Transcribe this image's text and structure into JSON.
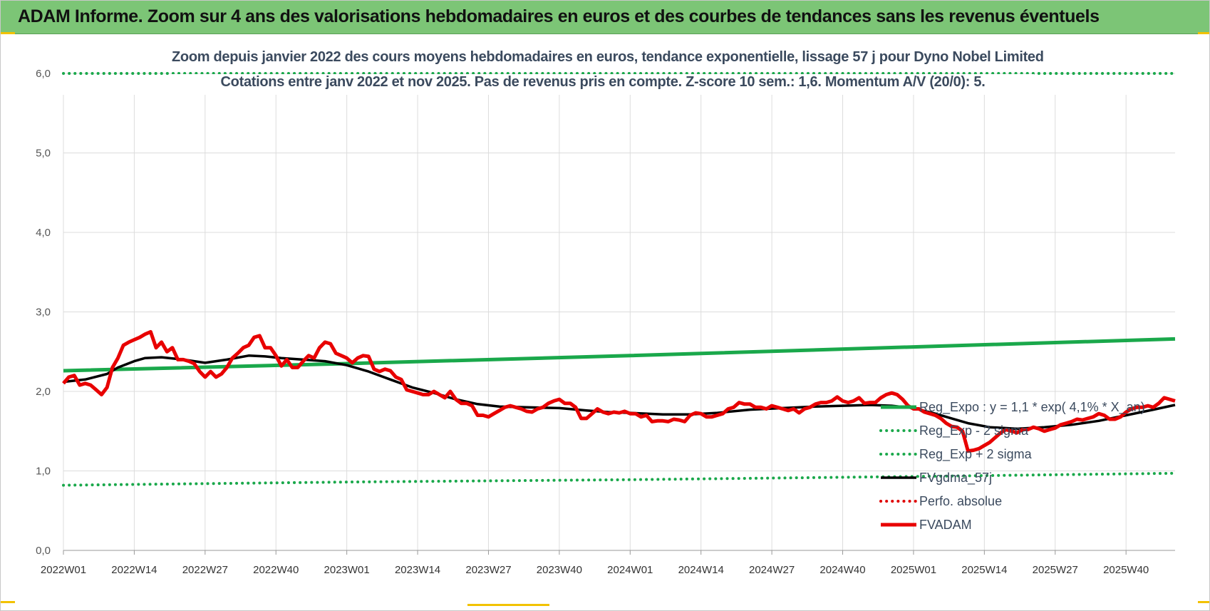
{
  "banner_title": "ADAM Informe. Zoom sur 4 ans des valorisations hebdomadaires en euros et des courbes de tendances sans les revenus éventuels",
  "colors": {
    "banner": "#7cc576",
    "accent": "#f2c200",
    "regression": "#1aa84b",
    "smoothing": "#000000",
    "perfo": "#e00000",
    "price": "#e80000",
    "grid": "#dcdcdc",
    "title_text": "#3b4a5e"
  },
  "chart_data": {
    "type": "line",
    "title": [
      "Zoom depuis janvier 2022 des cours moyens hebdomadaires en euros, tendance exponentielle, lissage 57 j pour Dyno Nobel Limited",
      "Cotations entre janv 2022 et nov 2025. Pas de revenus pris en compte. Z-score 10 sem.: 1,6. Momentum A/V (20/0): 5."
    ],
    "xlabel": "",
    "ylabel": "",
    "ylim": [
      0,
      6
    ],
    "y_ticks": [
      "0,0",
      "1,0",
      "2,0",
      "3,0",
      "4,0",
      "5,0",
      "6,0"
    ],
    "x_ticks": [
      "2022W01",
      "2022W14",
      "2022W27",
      "2022W40",
      "2023W01",
      "2023W14",
      "2023W27",
      "2023W40",
      "2024W01",
      "2024W14",
      "2024W27",
      "2024W40",
      "2025W01",
      "2025W14",
      "2025W27",
      "2025W40"
    ],
    "x_tick_weeks": [
      0,
      13,
      26,
      39,
      52,
      65,
      78,
      91,
      104,
      117,
      130,
      143,
      156,
      169,
      182,
      195
    ],
    "week_count": 205,
    "grid": true,
    "legend_position": "bottom-right",
    "series": [
      {
        "name": "Reg_Expo : y = 1,1 * exp( 4,1% * X_an)",
        "style": "solid-thick",
        "color": "#1aa84b",
        "points": [
          [
            0,
            2.26
          ],
          [
            52,
            2.35
          ],
          [
            104,
            2.45
          ],
          [
            156,
            2.56
          ],
          [
            204,
            2.66
          ]
        ]
      },
      {
        "name": "Reg_Exp - 2 sigma",
        "style": "dotted",
        "color": "#1aa84b",
        "points": [
          [
            0,
            0.82
          ],
          [
            52,
            0.86
          ],
          [
            104,
            0.89
          ],
          [
            156,
            0.93
          ],
          [
            204,
            0.97
          ]
        ]
      },
      {
        "name": "Reg_Exp + 2 sigma",
        "style": "dotted",
        "color": "#1aa84b",
        "points": [
          [
            0,
            6.0
          ],
          [
            204,
            6.0
          ]
        ]
      },
      {
        "name": "FVgdma_57j",
        "style": "solid",
        "color": "#000000",
        "points": [
          [
            0,
            2.12
          ],
          [
            4,
            2.15
          ],
          [
            8,
            2.22
          ],
          [
            10,
            2.3
          ],
          [
            13,
            2.38
          ],
          [
            15,
            2.42
          ],
          [
            18,
            2.43
          ],
          [
            22,
            2.4
          ],
          [
            26,
            2.36
          ],
          [
            30,
            2.4
          ],
          [
            34,
            2.45
          ],
          [
            37,
            2.44
          ],
          [
            40,
            2.42
          ],
          [
            44,
            2.4
          ],
          [
            48,
            2.38
          ],
          [
            52,
            2.33
          ],
          [
            56,
            2.25
          ],
          [
            60,
            2.15
          ],
          [
            64,
            2.05
          ],
          [
            68,
            1.98
          ],
          [
            72,
            1.9
          ],
          [
            76,
            1.84
          ],
          [
            80,
            1.81
          ],
          [
            85,
            1.8
          ],
          [
            91,
            1.79
          ],
          [
            96,
            1.76
          ],
          [
            100,
            1.74
          ],
          [
            104,
            1.73
          ],
          [
            110,
            1.71
          ],
          [
            115,
            1.71
          ],
          [
            120,
            1.73
          ],
          [
            126,
            1.77
          ],
          [
            132,
            1.79
          ],
          [
            138,
            1.81
          ],
          [
            143,
            1.82
          ],
          [
            148,
            1.83
          ],
          [
            152,
            1.82
          ],
          [
            156,
            1.79
          ],
          [
            160,
            1.72
          ],
          [
            163,
            1.66
          ],
          [
            166,
            1.6
          ],
          [
            170,
            1.55
          ],
          [
            175,
            1.53
          ],
          [
            180,
            1.55
          ],
          [
            185,
            1.58
          ],
          [
            190,
            1.63
          ],
          [
            195,
            1.7
          ],
          [
            200,
            1.77
          ],
          [
            204,
            1.83
          ]
        ]
      },
      {
        "name": "Perfo. absolue",
        "style": "dotted",
        "color": "#e00000",
        "points": []
      },
      {
        "name": "FVADAM",
        "style": "solid-thick",
        "color": "#e80000",
        "points": [
          [
            0,
            2.1
          ],
          [
            1,
            2.18
          ],
          [
            2,
            2.2
          ],
          [
            3,
            2.08
          ],
          [
            4,
            2.1
          ],
          [
            5,
            2.08
          ],
          [
            6,
            2.02
          ],
          [
            7,
            1.96
          ],
          [
            8,
            2.05
          ],
          [
            9,
            2.3
          ],
          [
            10,
            2.42
          ],
          [
            11,
            2.58
          ],
          [
            12,
            2.62
          ],
          [
            13,
            2.65
          ],
          [
            14,
            2.68
          ],
          [
            15,
            2.72
          ],
          [
            16,
            2.75
          ],
          [
            17,
            2.55
          ],
          [
            18,
            2.62
          ],
          [
            19,
            2.5
          ],
          [
            20,
            2.55
          ],
          [
            21,
            2.4
          ],
          [
            22,
            2.4
          ],
          [
            23,
            2.38
          ],
          [
            24,
            2.35
          ],
          [
            25,
            2.25
          ],
          [
            26,
            2.18
          ],
          [
            27,
            2.25
          ],
          [
            28,
            2.18
          ],
          [
            29,
            2.22
          ],
          [
            30,
            2.3
          ],
          [
            31,
            2.42
          ],
          [
            32,
            2.48
          ],
          [
            33,
            2.55
          ],
          [
            34,
            2.58
          ],
          [
            35,
            2.68
          ],
          [
            36,
            2.7
          ],
          [
            37,
            2.55
          ],
          [
            38,
            2.55
          ],
          [
            39,
            2.45
          ],
          [
            40,
            2.32
          ],
          [
            41,
            2.4
          ],
          [
            42,
            2.3
          ],
          [
            43,
            2.3
          ],
          [
            44,
            2.38
          ],
          [
            45,
            2.45
          ],
          [
            46,
            2.42
          ],
          [
            47,
            2.55
          ],
          [
            48,
            2.62
          ],
          [
            49,
            2.6
          ],
          [
            50,
            2.48
          ],
          [
            51,
            2.45
          ],
          [
            52,
            2.42
          ],
          [
            53,
            2.36
          ],
          [
            54,
            2.42
          ],
          [
            55,
            2.45
          ],
          [
            56,
            2.44
          ],
          [
            57,
            2.28
          ],
          [
            58,
            2.25
          ],
          [
            59,
            2.28
          ],
          [
            60,
            2.26
          ],
          [
            61,
            2.18
          ],
          [
            62,
            2.15
          ],
          [
            63,
            2.02
          ],
          [
            64,
            2.0
          ],
          [
            65,
            1.98
          ],
          [
            66,
            1.96
          ],
          [
            67,
            1.96
          ],
          [
            68,
            2.0
          ],
          [
            69,
            1.96
          ],
          [
            70,
            1.92
          ],
          [
            71,
            2.0
          ],
          [
            72,
            1.9
          ],
          [
            73,
            1.85
          ],
          [
            74,
            1.85
          ],
          [
            75,
            1.82
          ],
          [
            76,
            1.7
          ],
          [
            77,
            1.7
          ],
          [
            78,
            1.68
          ],
          [
            79,
            1.72
          ],
          [
            80,
            1.76
          ],
          [
            81,
            1.8
          ],
          [
            82,
            1.82
          ],
          [
            83,
            1.8
          ],
          [
            84,
            1.78
          ],
          [
            85,
            1.75
          ],
          [
            86,
            1.74
          ],
          [
            87,
            1.78
          ],
          [
            88,
            1.8
          ],
          [
            89,
            1.85
          ],
          [
            90,
            1.88
          ],
          [
            91,
            1.9
          ],
          [
            92,
            1.85
          ],
          [
            93,
            1.85
          ],
          [
            94,
            1.8
          ],
          [
            95,
            1.66
          ],
          [
            96,
            1.66
          ],
          [
            97,
            1.72
          ],
          [
            98,
            1.78
          ],
          [
            99,
            1.74
          ],
          [
            100,
            1.72
          ],
          [
            101,
            1.74
          ],
          [
            102,
            1.73
          ],
          [
            103,
            1.75
          ],
          [
            104,
            1.72
          ],
          [
            105,
            1.72
          ],
          [
            106,
            1.68
          ],
          [
            107,
            1.7
          ],
          [
            108,
            1.62
          ],
          [
            109,
            1.63
          ],
          [
            110,
            1.63
          ],
          [
            111,
            1.62
          ],
          [
            112,
            1.65
          ],
          [
            113,
            1.64
          ],
          [
            114,
            1.62
          ],
          [
            115,
            1.7
          ],
          [
            116,
            1.73
          ],
          [
            117,
            1.72
          ],
          [
            118,
            1.68
          ],
          [
            119,
            1.68
          ],
          [
            120,
            1.7
          ],
          [
            121,
            1.72
          ],
          [
            122,
            1.78
          ],
          [
            123,
            1.8
          ],
          [
            124,
            1.86
          ],
          [
            125,
            1.84
          ],
          [
            126,
            1.84
          ],
          [
            127,
            1.8
          ],
          [
            128,
            1.8
          ],
          [
            129,
            1.78
          ],
          [
            130,
            1.82
          ],
          [
            131,
            1.8
          ],
          [
            132,
            1.78
          ],
          [
            133,
            1.76
          ],
          [
            134,
            1.78
          ],
          [
            135,
            1.73
          ],
          [
            136,
            1.78
          ],
          [
            137,
            1.8
          ],
          [
            138,
            1.84
          ],
          [
            139,
            1.86
          ],
          [
            140,
            1.86
          ],
          [
            141,
            1.88
          ],
          [
            142,
            1.93
          ],
          [
            143,
            1.88
          ],
          [
            144,
            1.86
          ],
          [
            145,
            1.88
          ],
          [
            146,
            1.92
          ],
          [
            147,
            1.85
          ],
          [
            148,
            1.86
          ],
          [
            149,
            1.86
          ],
          [
            150,
            1.92
          ],
          [
            151,
            1.96
          ],
          [
            152,
            1.98
          ],
          [
            153,
            1.96
          ],
          [
            154,
            1.9
          ],
          [
            155,
            1.82
          ],
          [
            156,
            1.78
          ],
          [
            157,
            1.78
          ],
          [
            158,
            1.74
          ],
          [
            159,
            1.72
          ],
          [
            160,
            1.7
          ],
          [
            161,
            1.66
          ],
          [
            162,
            1.6
          ],
          [
            163,
            1.56
          ],
          [
            164,
            1.55
          ],
          [
            165,
            1.5
          ],
          [
            166,
            1.25
          ],
          [
            167,
            1.26
          ],
          [
            168,
            1.28
          ],
          [
            169,
            1.32
          ],
          [
            170,
            1.36
          ],
          [
            171,
            1.42
          ],
          [
            172,
            1.48
          ],
          [
            173,
            1.52
          ],
          [
            174,
            1.5
          ],
          [
            175,
            1.48
          ],
          [
            176,
            1.52
          ],
          [
            177,
            1.52
          ],
          [
            178,
            1.55
          ],
          [
            179,
            1.53
          ],
          [
            180,
            1.5
          ],
          [
            181,
            1.52
          ],
          [
            182,
            1.54
          ],
          [
            183,
            1.58
          ],
          [
            184,
            1.6
          ],
          [
            185,
            1.62
          ],
          [
            186,
            1.65
          ],
          [
            187,
            1.64
          ],
          [
            188,
            1.66
          ],
          [
            189,
            1.68
          ],
          [
            190,
            1.72
          ],
          [
            191,
            1.7
          ],
          [
            192,
            1.65
          ],
          [
            193,
            1.65
          ],
          [
            194,
            1.68
          ],
          [
            195,
            1.74
          ],
          [
            196,
            1.78
          ],
          [
            197,
            1.8
          ],
          [
            198,
            1.8
          ],
          [
            199,
            1.82
          ],
          [
            200,
            1.8
          ],
          [
            201,
            1.85
          ],
          [
            202,
            1.92
          ],
          [
            203,
            1.9
          ],
          [
            204,
            1.88
          ]
        ]
      }
    ]
  }
}
